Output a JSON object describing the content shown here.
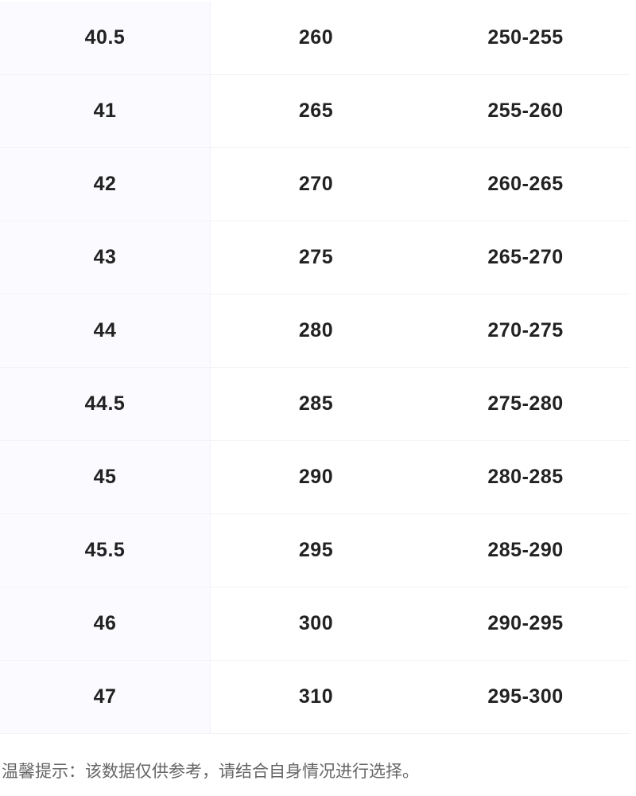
{
  "table": {
    "rows": [
      [
        "40.5",
        "260",
        "250-255"
      ],
      [
        "41",
        "265",
        "255-260"
      ],
      [
        "42",
        "270",
        "260-265"
      ],
      [
        "43",
        "275",
        "265-270"
      ],
      [
        "44",
        "280",
        "270-275"
      ],
      [
        "44.5",
        "285",
        "275-280"
      ],
      [
        "45",
        "290",
        "280-285"
      ],
      [
        "45.5",
        "295",
        "285-290"
      ],
      [
        "46",
        "300",
        "290-295"
      ],
      [
        "47",
        "310",
        "295-300"
      ]
    ]
  },
  "note": "温馨提示：该数据仅供参考，请结合自身情况进行选择。"
}
